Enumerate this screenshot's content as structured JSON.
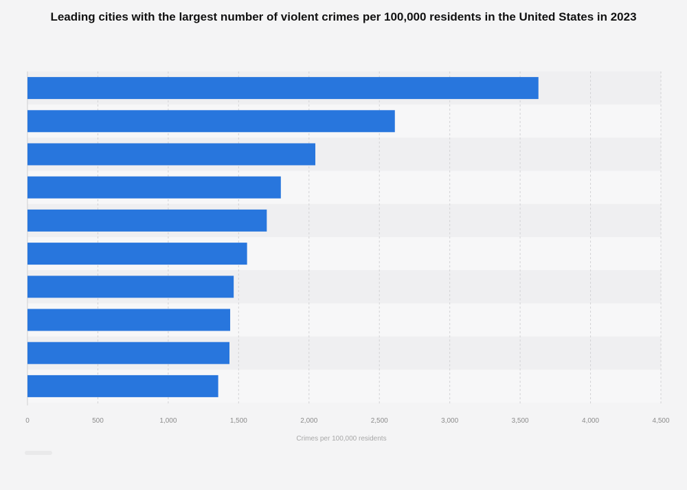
{
  "title": "Leading cities with the largest number of violent crimes per 100,000 residents in the United States in 2023",
  "colors": {
    "bar": "#2876dd",
    "band_light": "#f7f7f8",
    "band_dark": "#efeff1",
    "grid": "#d2d2d4"
  },
  "chart_data": {
    "type": "bar",
    "orientation": "horizontal",
    "title": "Leading cities with the largest number of violent crimes per 100,000 residents in the United States in 2023",
    "xlabel": "Crimes per 100,000 residents",
    "ylabel": "",
    "xlim": [
      0,
      4500
    ],
    "xticks": [
      0,
      500,
      1000,
      1500,
      2000,
      2500,
      3000,
      3500,
      4000,
      4500
    ],
    "xtick_labels": [
      "0",
      "500",
      "1,000",
      "1,500",
      "2,000",
      "2,500",
      "3,000",
      "3,500",
      "4,000",
      "4,500"
    ],
    "values": [
      3630,
      2610,
      2045,
      1800,
      1700,
      1560,
      1465,
      1440,
      1435,
      1355
    ],
    "grid": true
  }
}
